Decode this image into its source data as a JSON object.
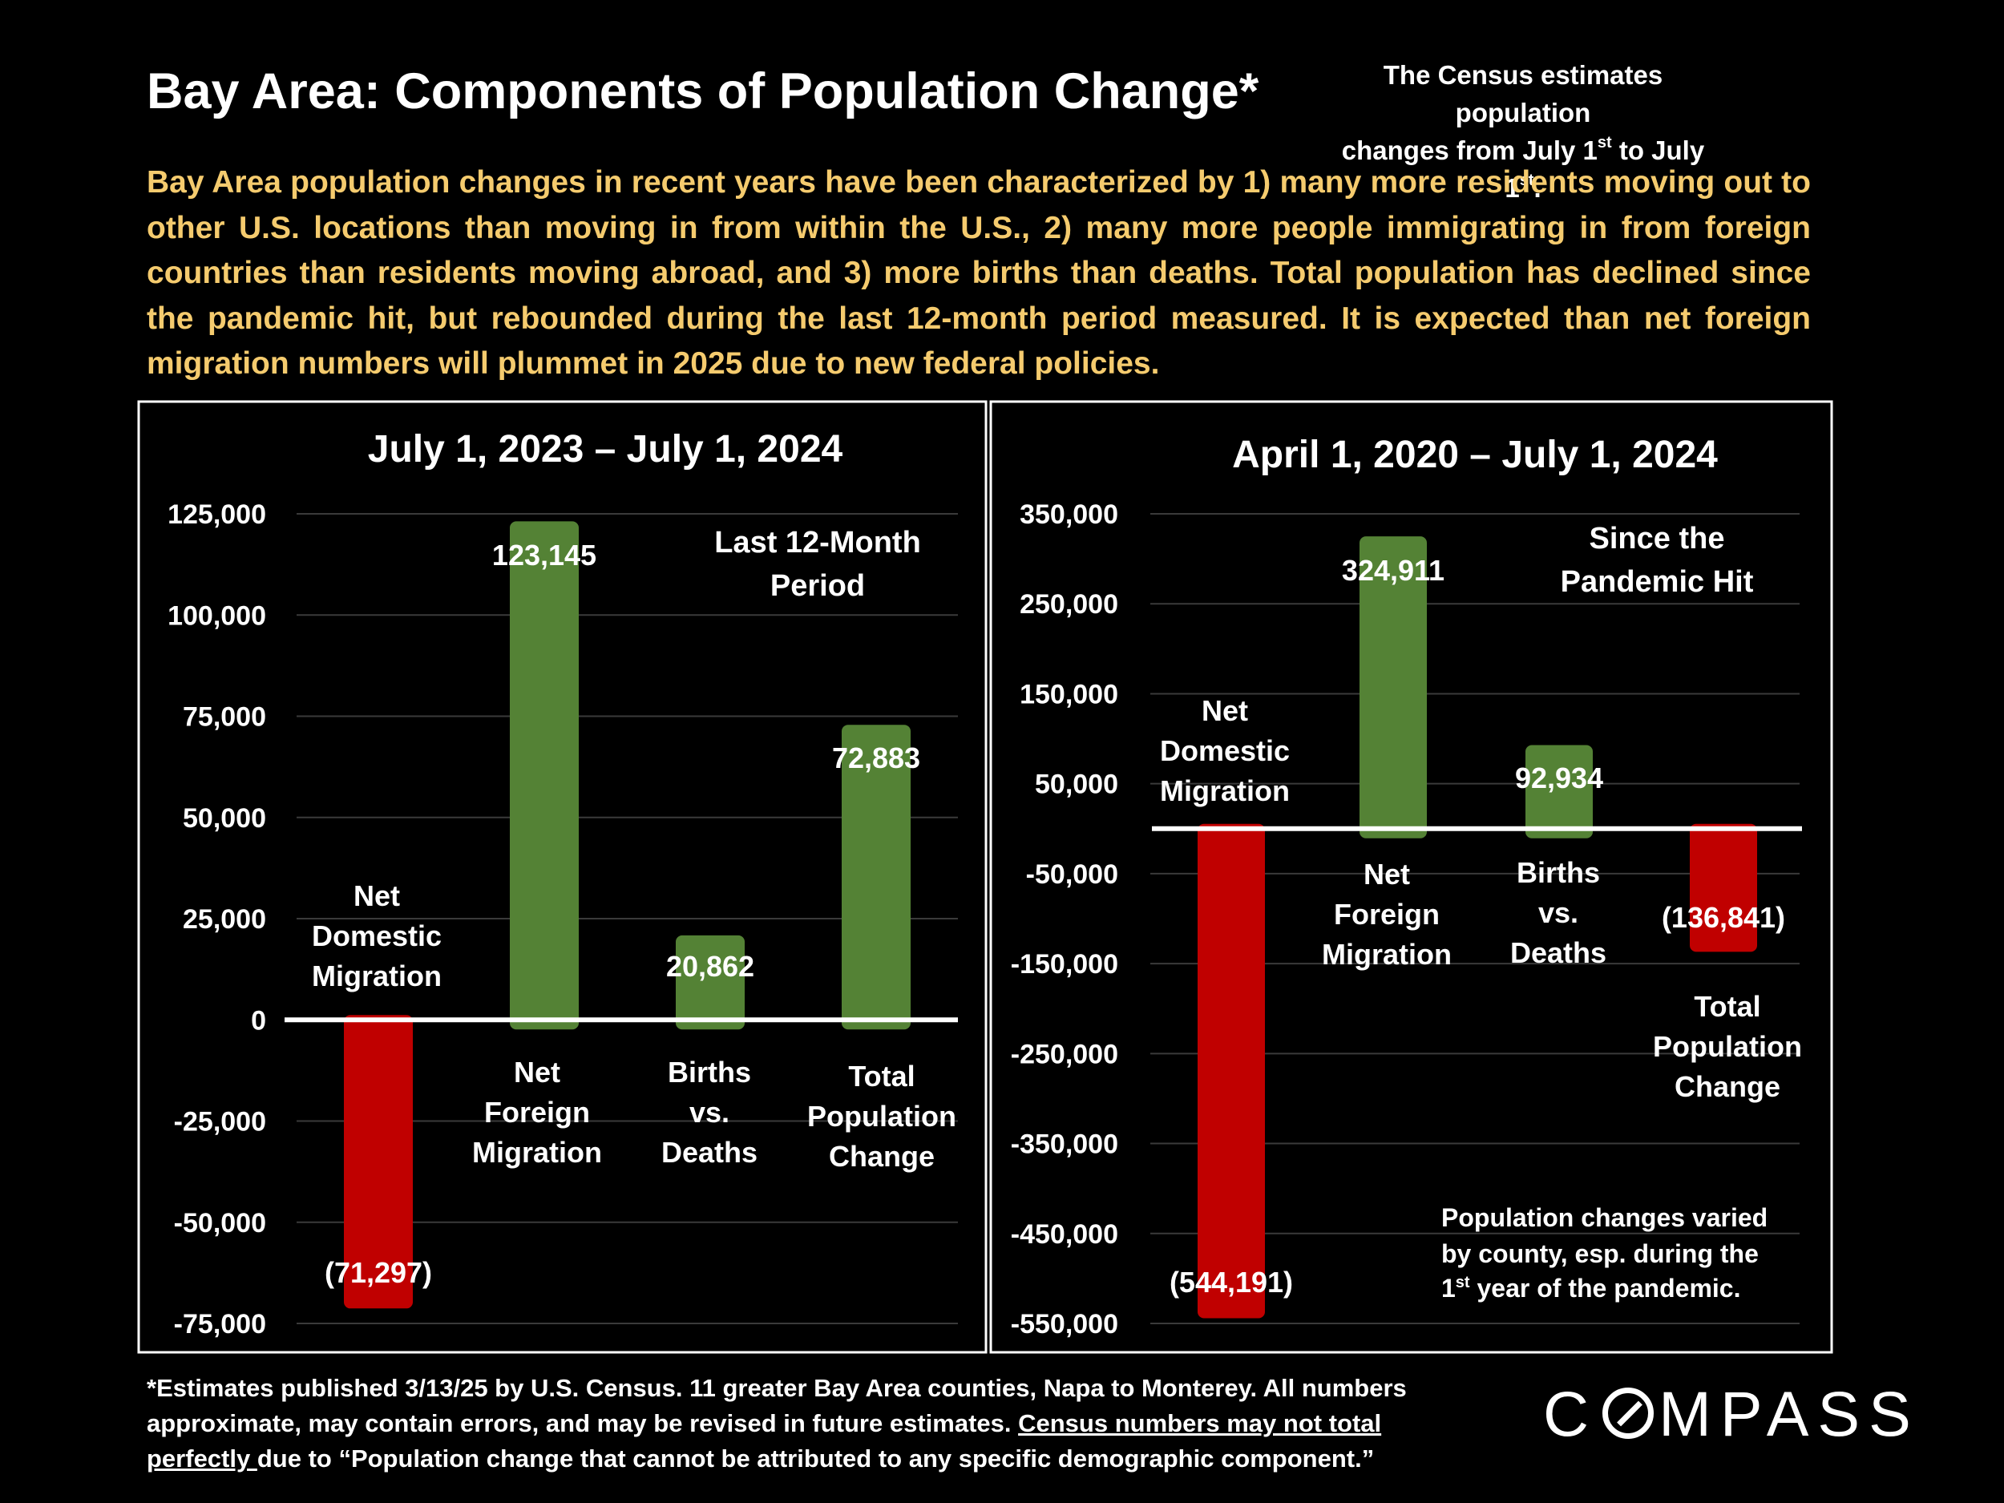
{
  "title": "Bay Area:  Components of Population Change*",
  "census_note": {
    "line1": "The Census estimates population",
    "line2_prefix": "changes from July 1",
    "sup1": "st",
    "line2_mid": " to July 1",
    "sup2": "st",
    "line2_suffix": "."
  },
  "summary": "Bay Area population changes in recent years have been characterized by 1) many more residents moving out to other U.S. locations than moving in from within the U.S., 2) many more people immigrating in from foreign countries than residents moving abroad, and 3) more births than deaths. Total population has declined since the pandemic hit, but rebounded during the last 12-month period measured.  It is expected than net foreign migration numbers will plummet in 2025 due to new federal policies.",
  "colors": {
    "positive": "#548235",
    "negative": "#C00000",
    "summary_text": "#F5CB6E"
  },
  "chart_data": [
    {
      "type": "bar",
      "title": "July 1, 2023 – July 1, 2024",
      "annotation": [
        "Last 12-Month",
        "Period"
      ],
      "categories": [
        [
          "Net",
          "Domestic",
          "Migration"
        ],
        [
          "Net",
          "Foreign",
          "Migration"
        ],
        [
          "Births",
          "vs.",
          "Deaths"
        ],
        [
          "Total",
          "Population",
          "Change"
        ]
      ],
      "values": [
        -71297,
        123145,
        20862,
        72883
      ],
      "value_labels": [
        "(71,297)",
        "123,145",
        "20,862",
        "72,883"
      ],
      "ylim": [
        -75000,
        125000
      ],
      "yticks": [
        125000,
        100000,
        75000,
        50000,
        25000,
        0,
        -25000,
        -50000,
        -75000
      ],
      "ytick_labels": [
        "125,000",
        "100,000",
        "75,000",
        "50,000",
        "25,000",
        "0",
        "-25,000",
        "-50,000",
        "-75,000"
      ],
      "grid": true
    },
    {
      "type": "bar",
      "title": "April 1, 2020 – July 1, 2024",
      "annotation": [
        "Since the",
        "Pandemic Hit"
      ],
      "categories": [
        [
          "Net",
          "Domestic",
          "Migration"
        ],
        [
          "Net",
          "Foreign",
          "Migration"
        ],
        [
          "Births",
          "vs.",
          "Deaths"
        ],
        [
          "Total",
          "Population",
          "Change"
        ]
      ],
      "values": [
        -544191,
        324911,
        92934,
        -136841
      ],
      "value_labels": [
        "(544,191)",
        "324,911",
        "92,934",
        "(136,841)"
      ],
      "ylim": [
        -550000,
        350000
      ],
      "yticks": [
        350000,
        250000,
        150000,
        50000,
        -50000,
        -150000,
        -250000,
        -350000,
        -450000,
        -550000
      ],
      "ytick_labels": [
        "350,000",
        "250,000",
        "150,000",
        "50,000",
        "-50,000",
        "-150,000",
        "-250,000",
        "-350,000",
        "-450,000",
        "-550,000"
      ],
      "grid": true,
      "note": {
        "line1": "Population changes varied",
        "line2": "by county, esp. during the",
        "line3_prefix": "1",
        "line3_sup": "st",
        "line3_suffix": " year of the pandemic."
      }
    }
  ],
  "footnote": {
    "text1": "*Estimates published 3/13/25 by U.S. Census. 11 greater Bay Area counties, Napa to Monterey. All numbers approximate, may contain errors, and may be revised in future estimates. ",
    "underlined": "Census numbers may not total perfectly ",
    "text2": "due to “Population change that cannot be attributed to any specific demographic component.”"
  },
  "logo": {
    "left": "C",
    "right": "MPASS"
  }
}
